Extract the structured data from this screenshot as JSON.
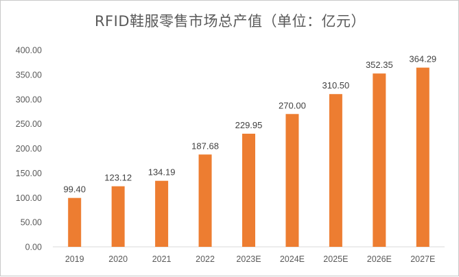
{
  "chart_data": {
    "type": "bar",
    "title": "RFID鞋服零售市场总产值（单位：亿元）",
    "categories": [
      "2019",
      "2020",
      "2021",
      "2022",
      "2023E",
      "2024E",
      "2025E",
      "2026E",
      "2027E"
    ],
    "values": [
      99.4,
      123.12,
      134.19,
      187.68,
      229.95,
      270.0,
      310.5,
      352.35,
      364.29
    ],
    "data_labels": [
      "99.40",
      "123.12",
      "134.19",
      "187.68",
      "229.95",
      "270.00",
      "310.50",
      "352.35",
      "364.29"
    ],
    "y_ticks": [
      "0.00",
      "50.00",
      "100.00",
      "150.00",
      "200.00",
      "250.00",
      "300.00",
      "350.00",
      "400.00"
    ],
    "ylim": [
      0,
      400
    ],
    "bar_color": "#ED7D31",
    "grid": false,
    "legend": "none"
  }
}
